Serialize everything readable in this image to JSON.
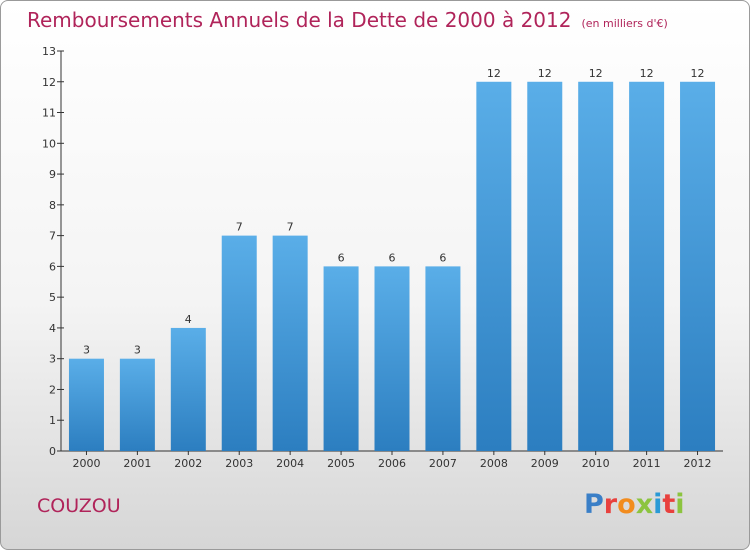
{
  "header": {
    "title": "Remboursements Annuels de la Dette de 2000 à 2012",
    "unit": "(en milliers d'€)"
  },
  "footer": {
    "commune": "COUZOU",
    "brand_letters": [
      "P",
      "r",
      "o",
      "x",
      "i",
      "t",
      "i"
    ],
    "brand_colors": [
      "#3a7fc7",
      "#e8413e",
      "#f28c1e",
      "#8cc43f",
      "#2a9ad6",
      "#e8413e",
      "#8cc43f"
    ]
  },
  "colors": {
    "title": "#b0245a",
    "bar_light": "#5aaee8",
    "bar_dark": "#2c7ec0",
    "axis": "#333333"
  },
  "chart_data": {
    "type": "bar",
    "title": "Remboursements Annuels de la Dette de 2000 à 2012",
    "subtitle": "(en milliers d'€)",
    "xlabel": "",
    "ylabel": "",
    "categories": [
      "2000",
      "2001",
      "2002",
      "2003",
      "2004",
      "2005",
      "2006",
      "2007",
      "2008",
      "2009",
      "2010",
      "2011",
      "2012"
    ],
    "values": [
      3,
      3,
      4,
      7,
      7,
      6,
      6,
      6,
      12,
      12,
      12,
      12,
      12
    ],
    "data_labels": [
      "3",
      "3",
      "4",
      "7",
      "7",
      "6",
      "6",
      "6",
      "12",
      "12",
      "12",
      "12",
      "12"
    ],
    "ylim": [
      0,
      13
    ],
    "yticks": [
      "0",
      "1",
      "2",
      "3",
      "4",
      "5",
      "6",
      "7",
      "8",
      "9",
      "10",
      "11",
      "12",
      "13"
    ],
    "grid": false,
    "legend": "none"
  }
}
